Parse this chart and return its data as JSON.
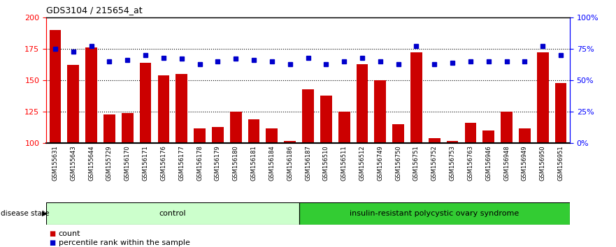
{
  "title": "GDS3104 / 215654_at",
  "samples": [
    "GSM155631",
    "GSM155643",
    "GSM155644",
    "GSM155729",
    "GSM156170",
    "GSM156171",
    "GSM156176",
    "GSM156177",
    "GSM156178",
    "GSM156179",
    "GSM156180",
    "GSM156181",
    "GSM156184",
    "GSM156186",
    "GSM156187",
    "GSM156510",
    "GSM156511",
    "GSM156512",
    "GSM156749",
    "GSM156750",
    "GSM156751",
    "GSM156752",
    "GSM156753",
    "GSM156763",
    "GSM156946",
    "GSM156948",
    "GSM156949",
    "GSM156950",
    "GSM156951"
  ],
  "bar_values": [
    190,
    162,
    176,
    123,
    124,
    164,
    154,
    155,
    112,
    113,
    125,
    119,
    112,
    102,
    143,
    138,
    125,
    163,
    150,
    115,
    172,
    104,
    102,
    116,
    110,
    125,
    112,
    172,
    148
  ],
  "dot_values_right": [
    75,
    73,
    77,
    65,
    66,
    70,
    68,
    67,
    63,
    65,
    67,
    66,
    65,
    63,
    68,
    63,
    65,
    68,
    65,
    63,
    77,
    63,
    64,
    65,
    65,
    65,
    65,
    77,
    70
  ],
  "control_count": 14,
  "bar_color": "#cc0000",
  "dot_color": "#0000cc",
  "control_bg": "#ccffcc",
  "disease_bg": "#33cc33",
  "label_bg": "#cccccc",
  "yticks_left": [
    100,
    125,
    150,
    175,
    200
  ],
  "yticks_right": [
    0,
    25,
    50,
    75,
    100
  ],
  "control_label": "control",
  "disease_label": "insulin-resistant polycystic ovary syndrome",
  "legend_count": "count",
  "legend_pct": "percentile rank within the sample",
  "disease_state_label": "disease state",
  "title_str": "GDS3104 / 215654_at"
}
